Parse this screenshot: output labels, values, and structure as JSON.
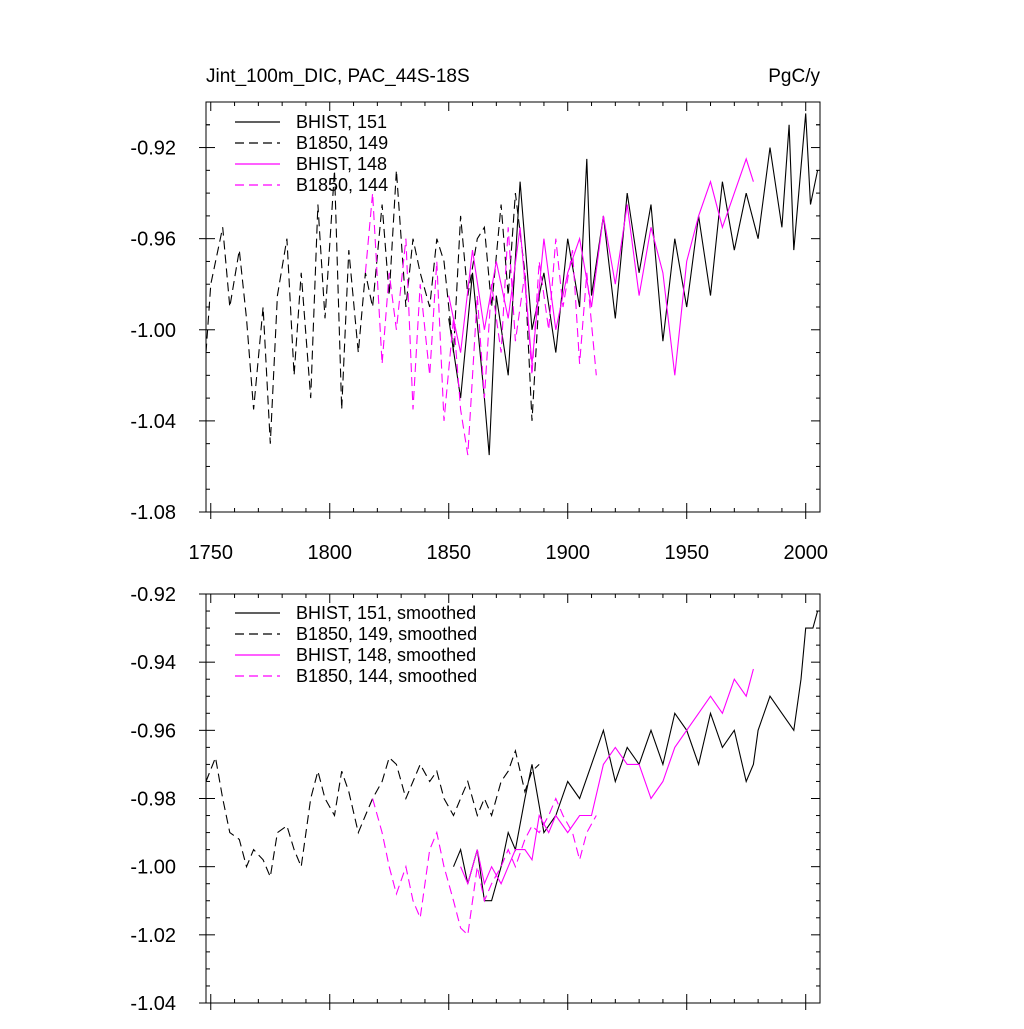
{
  "chart_data": [
    {
      "type": "line",
      "title": "Jint_100m_DIC, PAC_44S-18S",
      "units": "PgC/y",
      "xlabel": "",
      "ylabel": "",
      "xlim": [
        1748,
        2006
      ],
      "ylim": [
        -1.08,
        -0.9
      ],
      "x_ticks": [
        1750,
        1800,
        1850,
        1900,
        1950,
        2000
      ],
      "x_tick_labels": [
        "1750",
        "1800",
        "1850",
        "1900",
        "1950",
        "2000"
      ],
      "y_ticks": [
        -1.08,
        -1.04,
        -1.0,
        -0.96,
        -0.92
      ],
      "y_tick_labels": [
        "-1.08",
        "-1.04",
        "-1.00",
        "-0.96",
        "-0.92"
      ],
      "legend_position": "top-left",
      "series": [
        {
          "name": "BHIST, 151",
          "color": "#000000",
          "dash": "solid",
          "x": [
            1850,
            1855,
            1860,
            1865,
            1867,
            1870,
            1875,
            1880,
            1885,
            1890,
            1895,
            1900,
            1905,
            1908,
            1910,
            1915,
            1920,
            1925,
            1930,
            1935,
            1940,
            1945,
            1950,
            1955,
            1960,
            1965,
            1970,
            1975,
            1980,
            1985,
            1990,
            1993,
            1995,
            2000,
            2002,
            2005
          ],
          "y": [
            -0.995,
            -1.03,
            -0.975,
            -1.03,
            -1.055,
            -0.985,
            -1.02,
            -0.935,
            -1.0,
            -0.975,
            -1.01,
            -0.96,
            -0.99,
            -0.925,
            -0.985,
            -0.95,
            -0.995,
            -0.94,
            -0.975,
            -0.945,
            -1.005,
            -0.96,
            -0.99,
            -0.95,
            -0.985,
            -0.935,
            -0.965,
            -0.94,
            -0.96,
            -0.92,
            -0.955,
            -0.91,
            -0.965,
            -0.905,
            -0.945,
            -0.93
          ]
        },
        {
          "name": "B1850, 149",
          "color": "#000000",
          "dash": "dashed",
          "x": [
            1748,
            1750,
            1755,
            1758,
            1762,
            1765,
            1768,
            1772,
            1775,
            1778,
            1782,
            1785,
            1788,
            1792,
            1795,
            1798,
            1802,
            1805,
            1808,
            1812,
            1815,
            1818,
            1822,
            1825,
            1828,
            1832,
            1835,
            1838,
            1842,
            1845,
            1848,
            1852,
            1855,
            1858,
            1862,
            1865,
            1868,
            1872,
            1875,
            1878,
            1882,
            1885,
            1888
          ],
          "y": [
            -1.01,
            -0.98,
            -0.955,
            -0.99,
            -0.965,
            -0.995,
            -1.035,
            -0.99,
            -1.05,
            -0.985,
            -0.96,
            -1.02,
            -0.975,
            -1.03,
            -0.945,
            -0.995,
            -0.93,
            -1.035,
            -0.965,
            -1.01,
            -0.975,
            -0.99,
            -0.945,
            -0.985,
            -0.93,
            -0.99,
            -0.96,
            -0.975,
            -0.99,
            -0.96,
            -0.97,
            -1.01,
            -0.95,
            -0.985,
            -0.96,
            -0.955,
            -0.99,
            -0.945,
            -0.985,
            -0.94,
            -0.975,
            -1.04,
            -0.985
          ]
        },
        {
          "name": "BHIST, 148",
          "color": "#ff00ff",
          "dash": "solid",
          "x": [
            1850,
            1855,
            1860,
            1865,
            1870,
            1875,
            1880,
            1885,
            1890,
            1895,
            1900,
            1905,
            1910,
            1915,
            1920,
            1925,
            1930,
            1935,
            1940,
            1945,
            1950,
            1955,
            1960,
            1965,
            1970,
            1975,
            1978
          ],
          "y": [
            -0.985,
            -1.01,
            -0.965,
            -1.0,
            -0.97,
            -0.995,
            -0.955,
            -1.015,
            -0.96,
            -1.0,
            -0.975,
            -0.96,
            -0.99,
            -0.95,
            -0.98,
            -0.945,
            -0.985,
            -0.955,
            -0.975,
            -1.02,
            -0.97,
            -0.95,
            -0.935,
            -0.955,
            -0.94,
            -0.925,
            -0.935
          ]
        },
        {
          "name": "B1850, 144",
          "color": "#ff00ff",
          "dash": "dashed",
          "x": [
            1815,
            1818,
            1822,
            1825,
            1828,
            1832,
            1835,
            1838,
            1842,
            1845,
            1848,
            1852,
            1855,
            1858,
            1862,
            1865,
            1868,
            1872,
            1875,
            1878,
            1882,
            1885,
            1888,
            1892,
            1895,
            1898,
            1902,
            1905,
            1908,
            1912
          ],
          "y": [
            -0.975,
            -0.94,
            -1.015,
            -0.975,
            -1.0,
            -0.96,
            -1.035,
            -0.98,
            -1.02,
            -0.97,
            -1.04,
            -0.995,
            -1.035,
            -1.055,
            -0.985,
            -1.03,
            -0.98,
            -1.01,
            -0.955,
            -1.005,
            -0.975,
            -1.02,
            -0.97,
            -1.0,
            -0.96,
            -0.99,
            -0.965,
            -1.015,
            -0.975,
            -1.02
          ]
        }
      ]
    },
    {
      "type": "line",
      "title": "",
      "xlabel": "",
      "ylabel": "",
      "xlim": [
        1748,
        2006
      ],
      "ylim": [
        -1.04,
        -0.92
      ],
      "x_ticks": [
        1750,
        1800,
        1850,
        1900,
        1950,
        2000
      ],
      "y_ticks": [
        -1.04,
        -1.02,
        -1.0,
        -0.98,
        -0.96,
        -0.94,
        -0.92
      ],
      "y_tick_labels": [
        "-1.04",
        "-1.02",
        "-1.00",
        "-0.98",
        "-0.96",
        "-0.94",
        "-0.92"
      ],
      "legend_position": "top-left",
      "series": [
        {
          "name": "BHIST, 151, smoothed",
          "color": "#000000",
          "dash": "solid",
          "x": [
            1852,
            1855,
            1858,
            1862,
            1865,
            1868,
            1872,
            1875,
            1878,
            1882,
            1885,
            1890,
            1895,
            1900,
            1905,
            1910,
            1915,
            1920,
            1925,
            1930,
            1935,
            1940,
            1945,
            1950,
            1955,
            1960,
            1965,
            1970,
            1975,
            1978,
            1980,
            1985,
            1990,
            1995,
            1998,
            2000,
            2003,
            2005
          ],
          "y": [
            -1.0,
            -0.995,
            -1.005,
            -0.995,
            -1.01,
            -1.01,
            -1.0,
            -0.99,
            -0.995,
            -0.98,
            -0.97,
            -0.99,
            -0.985,
            -0.975,
            -0.98,
            -0.97,
            -0.96,
            -0.975,
            -0.965,
            -0.97,
            -0.96,
            -0.97,
            -0.955,
            -0.96,
            -0.97,
            -0.955,
            -0.965,
            -0.96,
            -0.975,
            -0.97,
            -0.96,
            -0.95,
            -0.955,
            -0.96,
            -0.945,
            -0.93,
            -0.93,
            -0.925
          ]
        },
        {
          "name": "B1850, 149, smoothed",
          "color": "#000000",
          "dash": "dashed",
          "x": [
            1748,
            1752,
            1755,
            1758,
            1762,
            1765,
            1768,
            1772,
            1775,
            1778,
            1782,
            1785,
            1788,
            1792,
            1795,
            1798,
            1802,
            1805,
            1808,
            1812,
            1815,
            1818,
            1822,
            1825,
            1828,
            1832,
            1835,
            1838,
            1842,
            1845,
            1848,
            1852,
            1855,
            1858,
            1862,
            1865,
            1868,
            1872,
            1875,
            1878,
            1882,
            1885,
            1888
          ],
          "y": [
            -0.975,
            -0.968,
            -0.98,
            -0.99,
            -0.992,
            -1.0,
            -0.995,
            -0.998,
            -1.003,
            -0.99,
            -0.988,
            -0.995,
            -1.0,
            -0.98,
            -0.972,
            -0.98,
            -0.985,
            -0.972,
            -0.978,
            -0.99,
            -0.985,
            -0.98,
            -0.975,
            -0.968,
            -0.97,
            -0.98,
            -0.975,
            -0.97,
            -0.975,
            -0.972,
            -0.98,
            -0.985,
            -0.98,
            -0.975,
            -0.985,
            -0.98,
            -0.985,
            -0.975,
            -0.972,
            -0.966,
            -0.978,
            -0.972,
            -0.97
          ]
        },
        {
          "name": "BHIST, 148, smoothed",
          "color": "#ff00ff",
          "dash": "solid",
          "x": [
            1855,
            1858,
            1862,
            1865,
            1868,
            1872,
            1875,
            1878,
            1882,
            1885,
            1888,
            1892,
            1895,
            1900,
            1905,
            1910,
            1915,
            1920,
            1925,
            1930,
            1935,
            1940,
            1945,
            1950,
            1955,
            1960,
            1965,
            1970,
            1975,
            1978
          ],
          "y": [
            -1.0,
            -1.005,
            -0.995,
            -1.005,
            -1.0,
            -1.005,
            -1.0,
            -0.995,
            -0.995,
            -0.998,
            -0.985,
            -0.99,
            -0.985,
            -0.99,
            -0.985,
            -0.985,
            -0.97,
            -0.965,
            -0.97,
            -0.97,
            -0.98,
            -0.975,
            -0.965,
            -0.96,
            -0.955,
            -0.95,
            -0.955,
            -0.945,
            -0.95,
            -0.942
          ]
        },
        {
          "name": "B1850, 144, smoothed",
          "color": "#ff00ff",
          "dash": "dashed",
          "x": [
            1818,
            1822,
            1825,
            1828,
            1832,
            1835,
            1838,
            1842,
            1845,
            1848,
            1852,
            1855,
            1858,
            1862,
            1865,
            1868,
            1872,
            1875,
            1878,
            1882,
            1885,
            1888,
            1892,
            1895,
            1898,
            1902,
            1905,
            1908,
            1912
          ],
          "y": [
            -0.98,
            -0.99,
            -1.0,
            -1.008,
            -1.0,
            -1.01,
            -1.015,
            -0.995,
            -0.99,
            -1.0,
            -1.01,
            -1.018,
            -1.02,
            -1.0,
            -1.01,
            -1.005,
            -1.0,
            -0.995,
            -1.0,
            -0.992,
            -0.988,
            -0.99,
            -0.985,
            -0.98,
            -0.985,
            -0.99,
            -0.998,
            -0.99,
            -0.985
          ]
        }
      ]
    }
  ]
}
